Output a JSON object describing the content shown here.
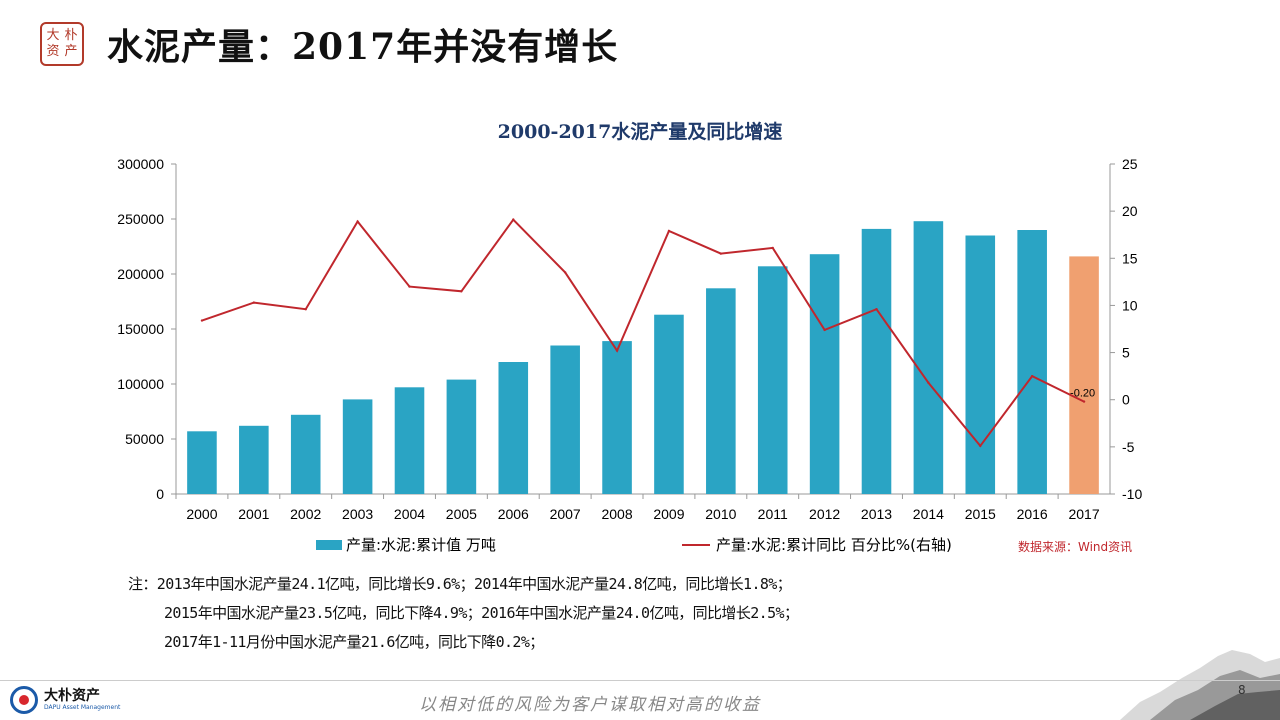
{
  "header": {
    "seal_chars": [
      "大",
      "朴",
      "资",
      "产"
    ],
    "title": "水泥产量：2017年并没有增长"
  },
  "chart_data": {
    "type": "bar",
    "title": "2000-2017水泥产量及同比增速",
    "categories": [
      "2000",
      "2001",
      "2002",
      "2003",
      "2004",
      "2005",
      "2006",
      "2007",
      "2008",
      "2009",
      "2010",
      "2011",
      "2012",
      "2013",
      "2014",
      "2015",
      "2016",
      "2017"
    ],
    "series": [
      {
        "name": "产量:水泥:累计值 万吨",
        "type": "bar",
        "axis": "left",
        "color": "#2aa4c4",
        "highlight_color": "#f0a070",
        "highlight_category": "2017",
        "values": [
          57000,
          62000,
          72000,
          86000,
          97000,
          104000,
          120000,
          135000,
          139000,
          163000,
          187000,
          207000,
          218000,
          241000,
          248000,
          235000,
          240000,
          216000
        ]
      },
      {
        "name": "产量:水泥:累计同比 百分比%(右轴)",
        "type": "line",
        "axis": "right",
        "color": "#c0272d",
        "values": [
          8.4,
          10.3,
          9.6,
          18.9,
          12.0,
          11.5,
          19.1,
          13.5,
          5.2,
          17.9,
          15.5,
          16.1,
          7.4,
          9.6,
          1.8,
          -4.9,
          2.5,
          -0.2
        ]
      }
    ],
    "y_left": {
      "min": 0,
      "max": 300000,
      "ticks": [
        "0",
        "50000",
        "100000",
        "150000",
        "200000",
        "250000",
        "300000"
      ]
    },
    "y_right": {
      "min": -10,
      "max": 25,
      "ticks": [
        "-10",
        "-5",
        "0",
        "5",
        "10",
        "15",
        "20",
        "25"
      ]
    },
    "annotations": [
      {
        "category": "2017",
        "series": 1,
        "text": "-0.20"
      }
    ],
    "legend_position": "bottom",
    "grid": false
  },
  "legend": {
    "bar_label": "产量:水泥:累计值 万吨",
    "line_label": "产量:水泥:累计同比 百分比%(右轴)"
  },
  "source": "数据来源：Wind资讯",
  "notes": [
    "注：2013年中国水泥产量24.1亿吨，同比增长9.6%；2014年中国水泥产量24.8亿吨，同比增长1.8%；",
    "2015年中国水泥产量23.5亿吨，同比下降4.9%；2016年中国水泥产量24.0亿吨，同比增长2.5%；",
    "2017年1-11月份中国水泥产量21.6亿吨，同比下降0.2%；"
  ],
  "footer": {
    "logo_cn": "大朴资产",
    "logo_en": "DAPU Asset Management",
    "slogan": "以相对低的风险为客户谋取相对高的收益",
    "page_number": "8"
  }
}
